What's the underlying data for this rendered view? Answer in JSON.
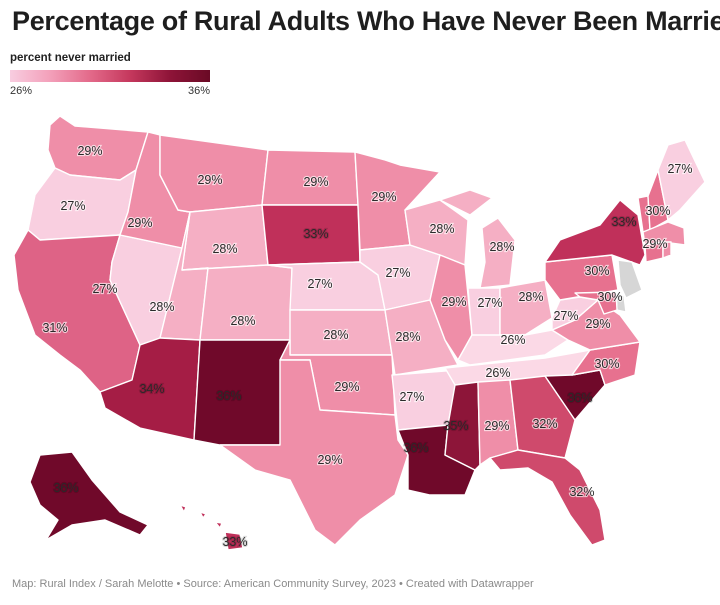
{
  "title": "Percentage of Rural Adults Who Have Never Been Married",
  "legend": {
    "title": "percent never married",
    "min_label": "26%",
    "max_label": "36%",
    "min_value": 26,
    "max_value": 36
  },
  "colors": {
    "c26": "#fbd9e6",
    "c27": "#f9cfe0",
    "c28": "#f5afc4",
    "c29": "#ef8ea8",
    "c30": "#e7718f",
    "c31": "#de6386",
    "c32": "#cf4a6c",
    "c33": "#c0305a",
    "c34": "#a51d45",
    "c35": "#8d1539",
    "c36": "#70092a",
    "nodata": "#d6d6d6"
  },
  "states": {
    "WA": {
      "label": "29%",
      "value": 29
    },
    "OR": {
      "label": "27%",
      "value": 27
    },
    "CA": {
      "label": "31%",
      "value": 31
    },
    "NV": {
      "label": "27%",
      "value": 27
    },
    "ID": {
      "label": "29%",
      "value": 29
    },
    "MT": {
      "label": "29%",
      "value": 29
    },
    "WY": {
      "label": "28%",
      "value": 28
    },
    "UT": {
      "label": "28%",
      "value": 28
    },
    "AZ": {
      "label": "34%",
      "value": 34
    },
    "CO": {
      "label": "28%",
      "value": 28
    },
    "NM": {
      "label": "36%",
      "value": 36
    },
    "ND": {
      "label": "29%",
      "value": 29
    },
    "SD": {
      "label": "33%",
      "value": 33
    },
    "NE": {
      "label": "27%",
      "value": 27
    },
    "KS": {
      "label": "28%",
      "value": 28
    },
    "OK": {
      "label": "29%",
      "value": 29
    },
    "TX": {
      "label": "29%",
      "value": 29
    },
    "MN": {
      "label": "29%",
      "value": 29
    },
    "IA": {
      "label": "27%",
      "value": 27
    },
    "MO": {
      "label": "28%",
      "value": 28
    },
    "AR": {
      "label": "27%",
      "value": 27
    },
    "LA": {
      "label": "36%",
      "value": 36
    },
    "WI": {
      "label": "28%",
      "value": 28
    },
    "IL": {
      "label": "29%",
      "value": 29
    },
    "MI": {
      "label": "28%",
      "value": 28
    },
    "IN": {
      "label": "27%",
      "value": 27
    },
    "OH": {
      "label": "28%",
      "value": 28
    },
    "KY": {
      "label": "26%",
      "value": 26
    },
    "TN": {
      "label": "26%",
      "value": 26
    },
    "MS": {
      "label": "35%",
      "value": 35
    },
    "AL": {
      "label": "29%",
      "value": 29
    },
    "GA": {
      "label": "32%",
      "value": 32
    },
    "FL": {
      "label": "32%",
      "value": 32
    },
    "SC": {
      "label": "36%",
      "value": 36
    },
    "NC": {
      "label": "30%",
      "value": 30
    },
    "VA": {
      "label": "29%",
      "value": 29
    },
    "WV": {
      "label": "27%",
      "value": 27
    },
    "PA": {
      "label": "30%",
      "value": 30
    },
    "NY": {
      "label": "33%",
      "value": 33
    },
    "VT": {
      "label": "30%",
      "value": 30
    },
    "NH": {
      "label": "30%",
      "value": 30
    },
    "ME": {
      "label": "27%",
      "value": 27
    },
    "MA": {
      "label": "29%",
      "value": 29
    },
    "CT": {
      "label": "",
      "value": 30
    },
    "RI": {
      "label": "",
      "value": 29
    },
    "NJ": {
      "label": "",
      "value": null
    },
    "DE": {
      "label": "",
      "value": null
    },
    "MD": {
      "label": "30%",
      "value": 30
    },
    "AK": {
      "label": "36%",
      "value": 36
    },
    "HI": {
      "label": "33%",
      "value": 33
    }
  },
  "footer": "Map: Rural Index / Sarah Melotte • Source: American Community Survey, 2023 • Created with Datawrapper"
}
